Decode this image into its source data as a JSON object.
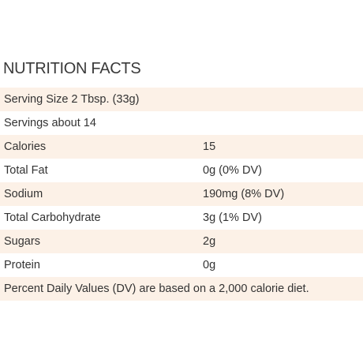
{
  "panel": {
    "title": "NUTRITION FACTS",
    "colors": {
      "row_shade": "#fcf1e7",
      "text": "#333333",
      "background": "#ffffff"
    }
  },
  "rows": [
    {
      "label": "Serving Size 2 Tbsp. (33g)",
      "value": ""
    },
    {
      "label": "Servings about 14",
      "value": ""
    },
    {
      "label": "Calories",
      "value": "15"
    },
    {
      "label": "Total Fat",
      "value": "0g (0% DV)"
    },
    {
      "label": "Sodium",
      "value": "190mg (8% DV)"
    },
    {
      "label": "Total Carbohydrate",
      "value": "3g (1% DV)"
    },
    {
      "label": "Sugars",
      "value": "2g"
    },
    {
      "label": "Protein",
      "value": "0g"
    },
    {
      "label": "Percent Daily Values (DV) are based on a 2,000 calorie diet.",
      "value": ""
    }
  ]
}
